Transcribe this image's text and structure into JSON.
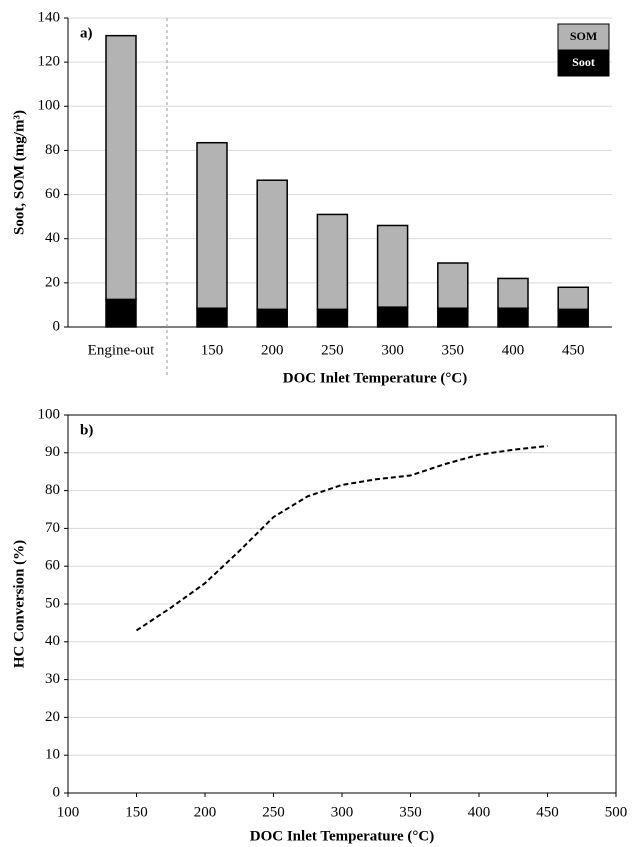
{
  "chart_data": [
    {
      "type": "bar",
      "stacked": true,
      "annotation": "a)",
      "categories": [
        "Engine-out",
        "150",
        "200",
        "250",
        "300",
        "350",
        "400",
        "450"
      ],
      "series": [
        {
          "name": "Soot",
          "color": "#000000",
          "values": [
            12.5,
            8.5,
            8,
            8,
            9,
            8.5,
            8.5,
            8
          ]
        },
        {
          "name": "SOM",
          "color": "#b3b3b3",
          "values": [
            119.5,
            75,
            58.5,
            43,
            37,
            20.5,
            13.5,
            10
          ]
        }
      ],
      "xlabel": "DOC Inlet Temperature (°C)",
      "ylabel": "Soot, SOM (mg/m³)",
      "ylim": [
        0,
        140
      ],
      "yticks": [
        0,
        20,
        40,
        60,
        80,
        100,
        120,
        140
      ],
      "grid": true,
      "legend": "upper right"
    },
    {
      "type": "line",
      "annotation": "b)",
      "x": [
        150,
        175,
        200,
        225,
        250,
        275,
        300,
        325,
        350,
        375,
        400,
        425,
        450
      ],
      "series": [
        {
          "color": "#000000",
          "line_style": "dashed",
          "values": [
            43,
            49,
            55.5,
            64,
            73,
            78.5,
            81.5,
            83,
            84,
            87,
            89.5,
            90.8,
            91.8
          ]
        }
      ],
      "xlabel": "DOC Inlet Temperature (°C)",
      "ylabel": "HC Conversion (%)",
      "xlim": [
        100,
        500
      ],
      "xticks": [
        100,
        150,
        200,
        250,
        300,
        350,
        400,
        450,
        500
      ],
      "ylim": [
        0,
        100
      ],
      "yticks": [
        0,
        10,
        20,
        30,
        40,
        50,
        60,
        70,
        80,
        90,
        100
      ],
      "grid": true
    }
  ]
}
